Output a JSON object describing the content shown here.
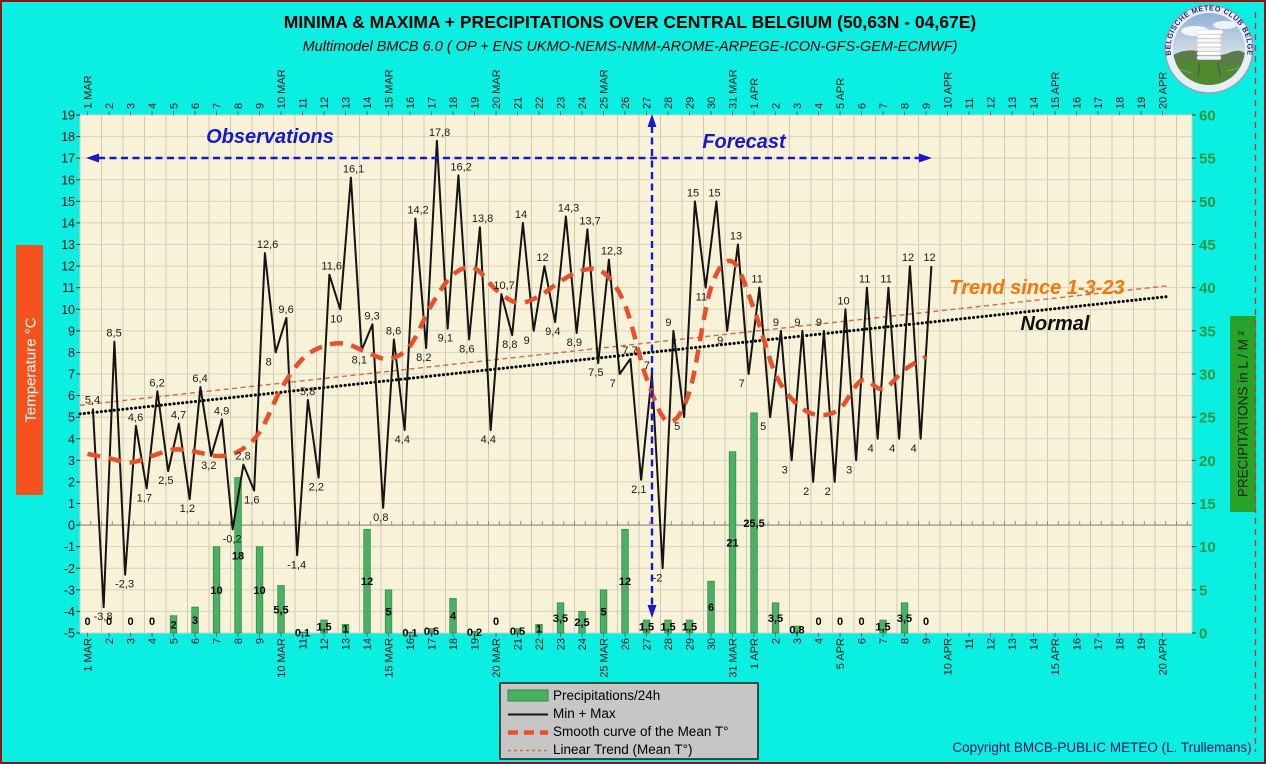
{
  "header": {
    "title": "MINIMA & MAXIMA + PRECIPITATIONS OVER CENTRAL BELGIUM (50,63N - 04,67E)",
    "subtitle": "Multimodel BMCB 6.0 ( OP + ENS UKMO-NEMS-NMM-AROME-ARPEGE-ICON-GFS-GEM-ECMWF)"
  },
  "annotations": {
    "observations": "Observations",
    "forecast": "Forecast",
    "trend_since": "Trend since 1-3-23",
    "normal": "Normal",
    "copyright": "Copyright BMCB-PUBLIC METEO (L. Trullemans)"
  },
  "logo": {
    "text": "BELGISCHE METEO CLUB BELGE"
  },
  "axes": {
    "left_label": "Temperature   °C",
    "right_label": "PRECIPITATIONS in L / M ²",
    "left_ticks": [
      19,
      18,
      17,
      16,
      15,
      14,
      13,
      12,
      11,
      10,
      9,
      8,
      7,
      6,
      5,
      4,
      3,
      2,
      1,
      0,
      -1,
      -2,
      -3,
      -4,
      -5
    ],
    "right_ticks": [
      60,
      55,
      50,
      45,
      40,
      35,
      30,
      25,
      20,
      15,
      10,
      5,
      0
    ],
    "day_labels": [
      "1 MAR",
      "2",
      "3",
      "4",
      "5",
      "6",
      "7",
      "8",
      "9",
      "10 MAR",
      "11",
      "12",
      "13",
      "14",
      "15 MAR",
      "16",
      "17",
      "18",
      "19",
      "20 MAR",
      "21",
      "22",
      "23",
      "24",
      "25 MAR",
      "26",
      "27",
      "28",
      "29",
      "30",
      "31 MAR",
      "1 APR",
      "2",
      "3",
      "4",
      "5 APR",
      "6",
      "7",
      "8",
      "9",
      "10 APR",
      "11",
      "12",
      "13",
      "14",
      "15 APR",
      "16",
      "17",
      "18",
      "19",
      "20 APR"
    ]
  },
  "legend": {
    "items": [
      {
        "label": "Precipitations/24h",
        "type": "bar"
      },
      {
        "label": "Min + Max",
        "type": "line"
      },
      {
        "label": "Smooth curve of the Mean T°",
        "type": "dashed"
      },
      {
        "label": "Linear Trend  (Mean T°)",
        "type": "dotted"
      }
    ]
  },
  "colors": {
    "background": "#0BEFE2",
    "plot_bg": "#F8F2D8",
    "grid": "#CFCBB8",
    "bar_fill": "#4CAF64",
    "bar_edge": "#2F8B46",
    "temp_line": "#141414",
    "smooth_curve": "#E8502A",
    "linear_trend": "#D2694B",
    "normal_line": "#000000",
    "blue": "#1818CC",
    "right_axis_text": "#2E9640",
    "left_label_bg": "#F4511E",
    "right_label_bg": "#28A228"
  },
  "chart_data": {
    "type": "line+bar",
    "title": "MINIMA & MAXIMA + PRECIPITATIONS OVER CENTRAL BELGIUM (50,63N - 04,67E)",
    "temp_axis_range": [
      -5,
      19
    ],
    "precip_axis_range": [
      0,
      60
    ],
    "grid": "on",
    "legend_position": "bottom-center",
    "forecast_split_after": "27 MAR",
    "series_units": {
      "temperature": "°C",
      "precipitation": "L/M²"
    },
    "days": [
      {
        "label": "1 MAR",
        "min": null,
        "max": 5.4,
        "precip": 0
      },
      {
        "label": "2 MAR",
        "min": -3.8,
        "max": 8.5,
        "precip": 0
      },
      {
        "label": "3 MAR",
        "min": -2.3,
        "max": 4.6,
        "precip": 0
      },
      {
        "label": "4 MAR",
        "min": 1.7,
        "max": 6.2,
        "precip": 0
      },
      {
        "label": "5 MAR",
        "min": 2.5,
        "max": 4.7,
        "precip": 2
      },
      {
        "label": "6 MAR",
        "min": 1.2,
        "max": 6.4,
        "precip": 3
      },
      {
        "label": "7 MAR",
        "min": 3.2,
        "max": 4.9,
        "precip": 10
      },
      {
        "label": "8 MAR",
        "min": -0.2,
        "max": 2.8,
        "precip": 18
      },
      {
        "label": "9 MAR",
        "min": 1.6,
        "max": 12.6,
        "precip": 10
      },
      {
        "label": "10 MAR",
        "min": 8,
        "max": 9.6,
        "precip": 5.5
      },
      {
        "label": "11 MAR",
        "min": -1.4,
        "max": 5.8,
        "precip": 0.1
      },
      {
        "label": "12 MAR",
        "min": 2.2,
        "max": 11.6,
        "precip": 1.5
      },
      {
        "label": "13 MAR",
        "min": 10,
        "max": 16.1,
        "precip": 1
      },
      {
        "label": "14 MAR",
        "min": 8.1,
        "max": 9.3,
        "precip": 12
      },
      {
        "label": "15 MAR",
        "min": 0.8,
        "max": 8.6,
        "precip": 5
      },
      {
        "label": "16 MAR",
        "min": 4.4,
        "max": 14.2,
        "precip": 0.1
      },
      {
        "label": "17 MAR",
        "min": 8.2,
        "max": 17.8,
        "precip": 0.5
      },
      {
        "label": "18 MAR",
        "min": 9.1,
        "max": 16.2,
        "precip": 4
      },
      {
        "label": "19 MAR",
        "min": 8.6,
        "max": 13.8,
        "precip": 0.2
      },
      {
        "label": "20 MAR",
        "min": 4.4,
        "max": 10.7,
        "precip": 0
      },
      {
        "label": "21 MAR",
        "min": 8.8,
        "max": 14,
        "precip": 0.5
      },
      {
        "label": "22 MAR",
        "min": 9,
        "max": 12,
        "precip": 1
      },
      {
        "label": "23 MAR",
        "min": 9.4,
        "max": 14.3,
        "precip": 3.5
      },
      {
        "label": "24 MAR",
        "min": 8.9,
        "max": 13.7,
        "precip": 2.5
      },
      {
        "label": "25 MAR",
        "min": 7.5,
        "max": 12.3,
        "precip": 5
      },
      {
        "label": "26 MAR",
        "min": 7,
        "max": 7.7,
        "precip": 12
      },
      {
        "label": "27 MAR",
        "min": 2.1,
        "max": 7,
        "precip": 1.5
      },
      {
        "label": "28 MAR",
        "min": -2,
        "max": 9,
        "precip": 1.5
      },
      {
        "label": "29 MAR",
        "min": 5,
        "max": 15,
        "precip": 1.5
      },
      {
        "label": "30 MAR",
        "min": 11,
        "max": 15,
        "precip": 6
      },
      {
        "label": "31 MAR",
        "min": 9,
        "max": 13,
        "precip": 21
      },
      {
        "label": "1 APR",
        "min": 7,
        "max": 11,
        "precip": 25.5
      },
      {
        "label": "2 APR",
        "min": 5,
        "max": 9,
        "precip": 3.5
      },
      {
        "label": "3 APR",
        "min": 3,
        "max": 9,
        "precip": 0.8
      },
      {
        "label": "4 APR",
        "min": 2,
        "max": 9,
        "precip": 0
      },
      {
        "label": "5 APR",
        "min": 2,
        "max": 10,
        "precip": 0
      },
      {
        "label": "6 APR",
        "min": 3,
        "max": 11,
        "precip": 0
      },
      {
        "label": "7 APR",
        "min": 4,
        "max": 11,
        "precip": 1.5
      },
      {
        "label": "8 APR",
        "min": 4,
        "max": 12,
        "precip": 3.5
      },
      {
        "label": "9 APR",
        "min": 4,
        "max": 12,
        "precip": 0
      }
    ],
    "smooth_mean": [
      3.3,
      3.1,
      2.9,
      3.2,
      3.5,
      3.4,
      3.2,
      3.4,
      4.3,
      6.3,
      7.7,
      8.3,
      8.4,
      8.0,
      7.7,
      8.3,
      10.2,
      11.6,
      11.9,
      10.9,
      10.3,
      10.6,
      11.3,
      11.8,
      11.7,
      10.2,
      6.8,
      4.8,
      6.2,
      11.0,
      12.2,
      10.0,
      7.0,
      5.6,
      5.1,
      5.4,
      6.7,
      6.3,
      7.2,
      7.8
    ],
    "linear_trend": {
      "start_C": 5.55,
      "end_C": 11.1
    },
    "normal_line": {
      "start_C": 5.15,
      "end_C": 10.6
    }
  }
}
